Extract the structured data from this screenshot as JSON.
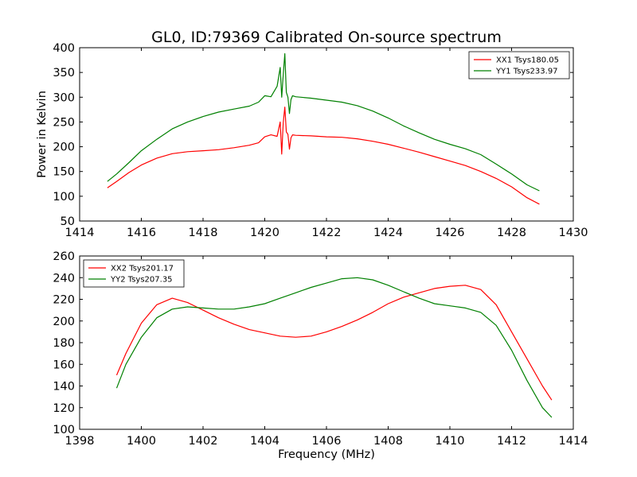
{
  "figure": {
    "title": "GL0, ID:79369 Calibrated On-source spectrum"
  },
  "chart_data": [
    {
      "type": "line",
      "ylabel": "Power in Kelvin",
      "xlabel": "",
      "xlim": [
        1414,
        1430
      ],
      "ylim": [
        50,
        400
      ],
      "xticks": [
        1414,
        1416,
        1418,
        1420,
        1422,
        1424,
        1426,
        1428,
        1430
      ],
      "yticks": [
        50,
        100,
        150,
        200,
        250,
        300,
        350,
        400
      ],
      "grid": false,
      "legend": "top-right",
      "series": [
        {
          "name": "XX1 Tsys180.05",
          "color": "#ff0000",
          "x": [
            1414.9,
            1415.2,
            1415.6,
            1416.0,
            1416.5,
            1417.0,
            1417.5,
            1418.0,
            1418.5,
            1419.0,
            1419.5,
            1419.8,
            1420.0,
            1420.2,
            1420.4,
            1420.5,
            1420.55,
            1420.6,
            1420.65,
            1420.7,
            1420.75,
            1420.8,
            1420.85,
            1420.9,
            1421.0,
            1421.5,
            1422.0,
            1422.5,
            1423.0,
            1423.5,
            1424.0,
            1424.5,
            1425.0,
            1425.5,
            1426.0,
            1426.5,
            1427.0,
            1427.5,
            1428.0,
            1428.5,
            1428.9
          ],
          "y": [
            117,
            130,
            148,
            163,
            177,
            186,
            190,
            192,
            194,
            198,
            203,
            208,
            220,
            224,
            221,
            250,
            185,
            248,
            280,
            230,
            225,
            195,
            218,
            224,
            223,
            222,
            220,
            219,
            216,
            211,
            205,
            197,
            189,
            180,
            171,
            162,
            150,
            136,
            119,
            97,
            84
          ]
        },
        {
          "name": "YY1 Tsys233.97",
          "color": "#008000",
          "x": [
            1414.9,
            1415.2,
            1415.6,
            1416.0,
            1416.5,
            1417.0,
            1417.5,
            1418.0,
            1418.5,
            1419.0,
            1419.5,
            1419.8,
            1420.0,
            1420.2,
            1420.4,
            1420.5,
            1420.55,
            1420.6,
            1420.65,
            1420.7,
            1420.75,
            1420.8,
            1420.85,
            1420.9,
            1421.0,
            1421.5,
            1422.0,
            1422.5,
            1423.0,
            1423.5,
            1424.0,
            1424.5,
            1425.0,
            1425.5,
            1426.0,
            1426.5,
            1427.0,
            1427.5,
            1428.0,
            1428.5,
            1428.9
          ],
          "y": [
            130,
            145,
            168,
            192,
            215,
            236,
            250,
            261,
            270,
            276,
            282,
            290,
            303,
            301,
            322,
            360,
            300,
            345,
            388,
            310,
            300,
            267,
            295,
            303,
            301,
            298,
            294,
            290,
            283,
            272,
            258,
            242,
            228,
            215,
            205,
            196,
            184,
            165,
            145,
            123,
            111
          ]
        }
      ]
    },
    {
      "type": "line",
      "ylabel": "",
      "xlabel": "Frequency (MHz)",
      "xlim": [
        1398,
        1414
      ],
      "ylim": [
        100,
        260
      ],
      "xticks": [
        1398,
        1400,
        1402,
        1404,
        1406,
        1408,
        1410,
        1412,
        1414
      ],
      "yticks": [
        100,
        120,
        140,
        160,
        180,
        200,
        220,
        240,
        260
      ],
      "grid": false,
      "legend": "top-left",
      "series": [
        {
          "name": "XX2 Tsys201.17",
          "color": "#ff0000",
          "x": [
            1399.2,
            1399.5,
            1400.0,
            1400.5,
            1401.0,
            1401.5,
            1402.0,
            1402.5,
            1403.0,
            1403.5,
            1404.0,
            1404.5,
            1405.0,
            1405.5,
            1406.0,
            1406.5,
            1407.0,
            1407.5,
            1408.0,
            1408.5,
            1409.0,
            1409.5,
            1410.0,
            1410.5,
            1411.0,
            1411.5,
            1412.0,
            1412.5,
            1413.0,
            1413.3
          ],
          "y": [
            150,
            170,
            198,
            215,
            221,
            217,
            210,
            203,
            197,
            192,
            189,
            186,
            185,
            186,
            190,
            195,
            201,
            208,
            216,
            222,
            226,
            230,
            232,
            233,
            229,
            215,
            190,
            165,
            140,
            127
          ]
        },
        {
          "name": "YY2 Tsys207.35",
          "color": "#008000",
          "x": [
            1399.2,
            1399.5,
            1400.0,
            1400.5,
            1401.0,
            1401.5,
            1402.0,
            1402.5,
            1403.0,
            1403.5,
            1404.0,
            1404.5,
            1405.0,
            1405.5,
            1406.0,
            1406.5,
            1407.0,
            1407.5,
            1408.0,
            1408.5,
            1409.0,
            1409.5,
            1410.0,
            1410.5,
            1411.0,
            1411.5,
            1412.0,
            1412.5,
            1413.0,
            1413.3
          ],
          "y": [
            138,
            160,
            185,
            203,
            211,
            213,
            212,
            211,
            211,
            213,
            216,
            221,
            226,
            231,
            235,
            239,
            240,
            238,
            233,
            227,
            221,
            216,
            214,
            212,
            208,
            196,
            173,
            145,
            120,
            111
          ]
        }
      ]
    }
  ]
}
